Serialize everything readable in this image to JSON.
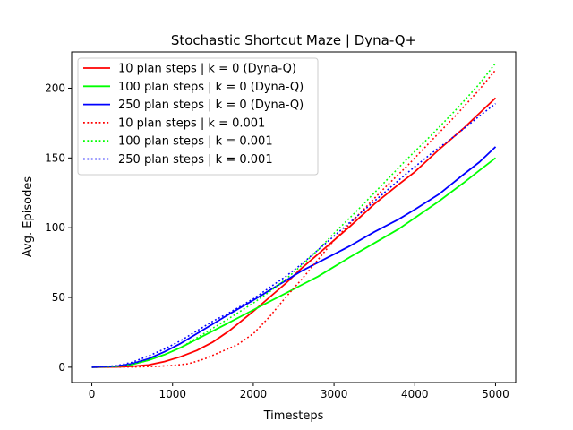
{
  "chart_data": {
    "type": "line",
    "title": "Stochastic Shortcut Maze | Dyna-Q+",
    "xlabel": "Timesteps",
    "ylabel": "Avg. Episodes",
    "xlim": [
      -250,
      5250
    ],
    "ylim": [
      -11,
      226
    ],
    "xticks": [
      0,
      1000,
      2000,
      3000,
      4000,
      5000
    ],
    "yticks": [
      0,
      50,
      100,
      150,
      200
    ],
    "grid": false,
    "legend_position": "top-left",
    "series": [
      {
        "name": "10 plan steps | k = 0 (Dyna-Q)",
        "color": "#ff0000",
        "dash": "solid",
        "x": [
          0,
          300,
          500,
          700,
          900,
          1100,
          1300,
          1500,
          1700,
          2000,
          2200,
          2400,
          2600,
          2800,
          3000,
          3200,
          3500,
          3800,
          4000,
          4300,
          4600,
          4800,
          5000
        ],
        "y": [
          0,
          0.2,
          0.6,
          1.6,
          4,
          7.5,
          12,
          18,
          26,
          40,
          50,
          60,
          71,
          81,
          91,
          101,
          117,
          131,
          140,
          156,
          171,
          182,
          193
        ]
      },
      {
        "name": "100 plan steps | k = 0 (Dyna-Q)",
        "color": "#00ff00",
        "dash": "solid",
        "x": [
          0,
          300,
          500,
          700,
          900,
          1100,
          1300,
          1500,
          1700,
          2000,
          2200,
          2400,
          2600,
          2800,
          3000,
          3200,
          3500,
          3800,
          4000,
          4300,
          4600,
          4800,
          5000
        ],
        "y": [
          0,
          0.5,
          2,
          5,
          9,
          14,
          20,
          26,
          32,
          41,
          47,
          53,
          59,
          65,
          72,
          79,
          89,
          99,
          107,
          119,
          132,
          141,
          150
        ]
      },
      {
        "name": "250 plan steps | k = 0 (Dyna-Q)",
        "color": "#0000ff",
        "dash": "solid",
        "x": [
          0,
          300,
          500,
          700,
          900,
          1100,
          1300,
          1500,
          1700,
          2000,
          2200,
          2400,
          2600,
          2800,
          3000,
          3200,
          3500,
          3800,
          4000,
          4300,
          4600,
          4800,
          5000
        ],
        "y": [
          0,
          0.6,
          2.5,
          6,
          11,
          17,
          24,
          31,
          38,
          48,
          55,
          62,
          69,
          75,
          81,
          87,
          97,
          106,
          113,
          124,
          138,
          147,
          158
        ]
      },
      {
        "name": "10 plan steps | k = 0.001",
        "color": "#ff0000",
        "dash": "dotted",
        "x": [
          0,
          500,
          800,
          1000,
          1200,
          1400,
          1600,
          1800,
          2000,
          2200,
          2400,
          2600,
          2800,
          3000,
          3300,
          3600,
          3900,
          4200,
          4500,
          4800,
          5000
        ],
        "y": [
          0,
          0.2,
          0.6,
          1.2,
          2.5,
          6,
          11,
          16,
          24,
          36,
          50,
          63,
          77,
          91,
          109,
          127,
          144,
          162,
          180,
          199,
          213
        ]
      },
      {
        "name": "100 plan steps | k = 0.001",
        "color": "#00ff00",
        "dash": "dotted",
        "x": [
          0,
          300,
          500,
          700,
          900,
          1100,
          1300,
          1500,
          1700,
          2000,
          2200,
          2400,
          2600,
          2800,
          3000,
          3300,
          3600,
          3900,
          4200,
          4500,
          4800,
          5000
        ],
        "y": [
          0,
          0.5,
          2,
          5,
          9,
          14,
          21,
          28,
          35,
          46,
          54,
          63,
          73,
          84,
          96,
          113,
          131,
          149,
          166,
          184,
          203,
          218
        ]
      },
      {
        "name": "250 plan steps | k = 0.001",
        "color": "#0000ff",
        "dash": "dotted",
        "x": [
          0,
          300,
          500,
          700,
          900,
          1100,
          1300,
          1500,
          1700,
          2000,
          2200,
          2400,
          2600,
          2800,
          3000,
          3300,
          3600,
          3900,
          4200,
          4500,
          4800,
          5000
        ],
        "y": [
          0,
          1,
          3.5,
          8,
          13,
          19,
          26,
          33,
          39,
          49,
          57,
          65,
          74,
          84,
          94,
          109,
          124,
          139,
          153,
          166,
          180,
          189
        ]
      }
    ]
  }
}
